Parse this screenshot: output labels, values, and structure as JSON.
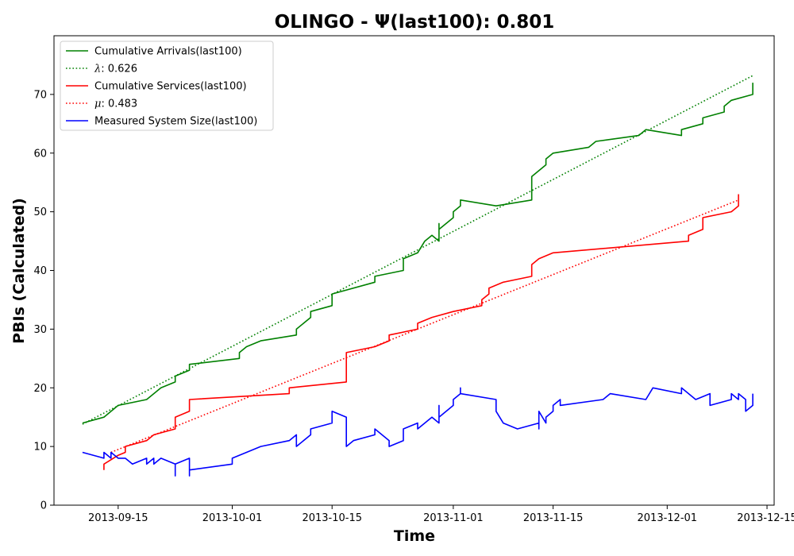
{
  "chart_data": {
    "type": "line",
    "title": "OLINGO -  Ψ(last100): 0.801",
    "xlabel": "Time",
    "ylabel": "PBIs (Calculated)",
    "x_axis": {
      "type": "date",
      "range": [
        "2013-09-06",
        "2013-12-16"
      ],
      "ticks": [
        "2013-09-15",
        "2013-10-01",
        "2013-10-15",
        "2013-11-01",
        "2013-11-15",
        "2013-12-01",
        "2013-12-15"
      ]
    },
    "y_axis": {
      "range": [
        0,
        80
      ],
      "ticks": [
        0,
        10,
        20,
        30,
        40,
        50,
        60,
        70
      ]
    },
    "grid": false,
    "legend_position": "top-left",
    "series": [
      {
        "name": "Cumulative Arrivals(last100)",
        "color": "#008000",
        "style": "solid",
        "points": [
          [
            "2013-09-10",
            14
          ],
          [
            "2013-09-13",
            15
          ],
          [
            "2013-09-15",
            17
          ],
          [
            "2013-09-19",
            18
          ],
          [
            "2013-09-20",
            19
          ],
          [
            "2013-09-21",
            20
          ],
          [
            "2013-09-23",
            21
          ],
          [
            "2013-09-23",
            22
          ],
          [
            "2013-09-25",
            23
          ],
          [
            "2013-09-25",
            24
          ],
          [
            "2013-10-02",
            25
          ],
          [
            "2013-10-02",
            26
          ],
          [
            "2013-10-03",
            27
          ],
          [
            "2013-10-05",
            28
          ],
          [
            "2013-10-10",
            29
          ],
          [
            "2013-10-10",
            30
          ],
          [
            "2013-10-12",
            32
          ],
          [
            "2013-10-12",
            33
          ],
          [
            "2013-10-15",
            34
          ],
          [
            "2013-10-15",
            36
          ],
          [
            "2013-10-21",
            38
          ],
          [
            "2013-10-21",
            39
          ],
          [
            "2013-10-25",
            40
          ],
          [
            "2013-10-25",
            42
          ],
          [
            "2013-10-27",
            43
          ],
          [
            "2013-10-28",
            45
          ],
          [
            "2013-10-29",
            46
          ],
          [
            "2013-10-30",
            45
          ],
          [
            "2013-10-30",
            48
          ],
          [
            "2013-10-30",
            47
          ],
          [
            "2013-11-01",
            49
          ],
          [
            "2013-11-01",
            50
          ],
          [
            "2013-11-02",
            51
          ],
          [
            "2013-11-02",
            52
          ],
          [
            "2013-11-07",
            51
          ],
          [
            "2013-11-12",
            52
          ],
          [
            "2013-11-12",
            54
          ],
          [
            "2013-11-12",
            56
          ],
          [
            "2013-11-14",
            58
          ],
          [
            "2013-11-14",
            59
          ],
          [
            "2013-11-15",
            60
          ],
          [
            "2013-11-20",
            61
          ],
          [
            "2013-11-21",
            62
          ],
          [
            "2013-11-27",
            63
          ],
          [
            "2013-11-28",
            64
          ],
          [
            "2013-12-03",
            63
          ],
          [
            "2013-12-03",
            64
          ],
          [
            "2013-12-06",
            65
          ],
          [
            "2013-12-06",
            66
          ],
          [
            "2013-12-09",
            67
          ],
          [
            "2013-12-09",
            68
          ],
          [
            "2013-12-10",
            69
          ],
          [
            "2013-12-13",
            70
          ],
          [
            "2013-12-13",
            72
          ]
        ]
      },
      {
        "name": "λ: 0.626",
        "legend_math_symbol": "λ",
        "legend_value": ": 0.626",
        "color": "#008000",
        "style": "dotted",
        "points": [
          [
            "2013-09-10",
            13.8
          ],
          [
            "2013-12-13",
            73.2
          ]
        ]
      },
      {
        "name": "Cumulative Services(last100)",
        "color": "#ff0000",
        "style": "solid",
        "points": [
          [
            "2013-09-13",
            6
          ],
          [
            "2013-09-13",
            7
          ],
          [
            "2013-09-15",
            8.5
          ],
          [
            "2013-09-16",
            9
          ],
          [
            "2013-09-16",
            10
          ],
          [
            "2013-09-19",
            11
          ],
          [
            "2013-09-20",
            12
          ],
          [
            "2013-09-23",
            13
          ],
          [
            "2013-09-23",
            15
          ],
          [
            "2013-09-25",
            16
          ],
          [
            "2013-09-25",
            18
          ],
          [
            "2013-10-09",
            19
          ],
          [
            "2013-10-09",
            20
          ],
          [
            "2013-10-17",
            21
          ],
          [
            "2013-10-17",
            26
          ],
          [
            "2013-10-21",
            27
          ],
          [
            "2013-10-23",
            28
          ],
          [
            "2013-10-23",
            29
          ],
          [
            "2013-10-27",
            30
          ],
          [
            "2013-10-27",
            31
          ],
          [
            "2013-10-29",
            32
          ],
          [
            "2013-11-01",
            33
          ],
          [
            "2013-11-05",
            34
          ],
          [
            "2013-11-05",
            35
          ],
          [
            "2013-11-06",
            36
          ],
          [
            "2013-11-06",
            37
          ],
          [
            "2013-11-08",
            38
          ],
          [
            "2013-11-12",
            39
          ],
          [
            "2013-11-12",
            41
          ],
          [
            "2013-11-13",
            42
          ],
          [
            "2013-11-15",
            43
          ],
          [
            "2013-12-04",
            45
          ],
          [
            "2013-12-04",
            46
          ],
          [
            "2013-12-06",
            47
          ],
          [
            "2013-12-06",
            49
          ],
          [
            "2013-12-10",
            50
          ],
          [
            "2013-12-11",
            51
          ],
          [
            "2013-12-11",
            53
          ]
        ]
      },
      {
        "name": "μ: 0.483",
        "legend_math_symbol": "μ",
        "legend_value": ": 0.483",
        "color": "#ff0000",
        "style": "dotted",
        "points": [
          [
            "2013-09-14",
            9
          ],
          [
            "2013-12-11",
            52
          ]
        ]
      },
      {
        "name": "Measured System Size(last100)",
        "color": "#0000ff",
        "style": "solid",
        "points": [
          [
            "2013-09-10",
            9
          ],
          [
            "2013-09-13",
            8
          ],
          [
            "2013-09-13",
            9
          ],
          [
            "2013-09-14",
            8
          ],
          [
            "2013-09-14",
            9
          ],
          [
            "2013-09-15",
            8
          ],
          [
            "2013-09-16",
            8
          ],
          [
            "2013-09-17",
            7
          ],
          [
            "2013-09-19",
            8
          ],
          [
            "2013-09-19",
            7
          ],
          [
            "2013-09-20",
            8
          ],
          [
            "2013-09-20",
            7
          ],
          [
            "2013-09-21",
            8
          ],
          [
            "2013-09-23",
            7
          ],
          [
            "2013-09-23",
            5
          ],
          [
            "2013-09-23",
            7
          ],
          [
            "2013-09-25",
            8
          ],
          [
            "2013-09-25",
            5
          ],
          [
            "2013-09-25",
            6
          ],
          [
            "2013-10-01",
            7
          ],
          [
            "2013-10-01",
            8
          ],
          [
            "2013-10-03",
            9
          ],
          [
            "2013-10-05",
            10
          ],
          [
            "2013-10-09",
            11
          ],
          [
            "2013-10-10",
            12
          ],
          [
            "2013-10-10",
            10
          ],
          [
            "2013-10-12",
            12
          ],
          [
            "2013-10-12",
            13
          ],
          [
            "2013-10-15",
            14
          ],
          [
            "2013-10-15",
            16
          ],
          [
            "2013-10-17",
            15
          ],
          [
            "2013-10-17",
            10
          ],
          [
            "2013-10-18",
            11
          ],
          [
            "2013-10-21",
            12
          ],
          [
            "2013-10-21",
            13
          ],
          [
            "2013-10-23",
            11
          ],
          [
            "2013-10-23",
            10
          ],
          [
            "2013-10-25",
            11
          ],
          [
            "2013-10-25",
            13
          ],
          [
            "2013-10-27",
            14
          ],
          [
            "2013-10-27",
            13
          ],
          [
            "2013-10-29",
            15
          ],
          [
            "2013-10-30",
            14
          ],
          [
            "2013-10-30",
            17
          ],
          [
            "2013-10-30",
            15
          ],
          [
            "2013-11-01",
            17
          ],
          [
            "2013-11-01",
            18
          ],
          [
            "2013-11-02",
            19
          ],
          [
            "2013-11-02",
            20
          ],
          [
            "2013-11-02",
            19
          ],
          [
            "2013-11-07",
            18
          ],
          [
            "2013-11-07",
            16
          ],
          [
            "2013-11-08",
            14
          ],
          [
            "2013-11-10",
            13
          ],
          [
            "2013-11-13",
            14
          ],
          [
            "2013-11-13",
            13
          ],
          [
            "2013-11-13",
            16
          ],
          [
            "2013-11-14",
            14
          ],
          [
            "2013-11-14",
            15
          ],
          [
            "2013-11-15",
            16
          ],
          [
            "2013-11-15",
            17
          ],
          [
            "2013-11-16",
            18
          ],
          [
            "2013-11-16",
            17
          ],
          [
            "2013-11-22",
            18
          ],
          [
            "2013-11-23",
            19
          ],
          [
            "2013-11-28",
            18
          ],
          [
            "2013-11-29",
            20
          ],
          [
            "2013-12-03",
            19
          ],
          [
            "2013-12-03",
            20
          ],
          [
            "2013-12-05",
            18
          ],
          [
            "2013-12-07",
            19
          ],
          [
            "2013-12-07",
            17
          ],
          [
            "2013-12-10",
            18
          ],
          [
            "2013-12-10",
            19
          ],
          [
            "2013-12-11",
            18
          ],
          [
            "2013-12-11",
            19
          ],
          [
            "2013-12-12",
            18
          ],
          [
            "2013-12-12",
            16
          ],
          [
            "2013-12-13",
            17
          ],
          [
            "2013-12-13",
            19
          ]
        ]
      }
    ]
  }
}
